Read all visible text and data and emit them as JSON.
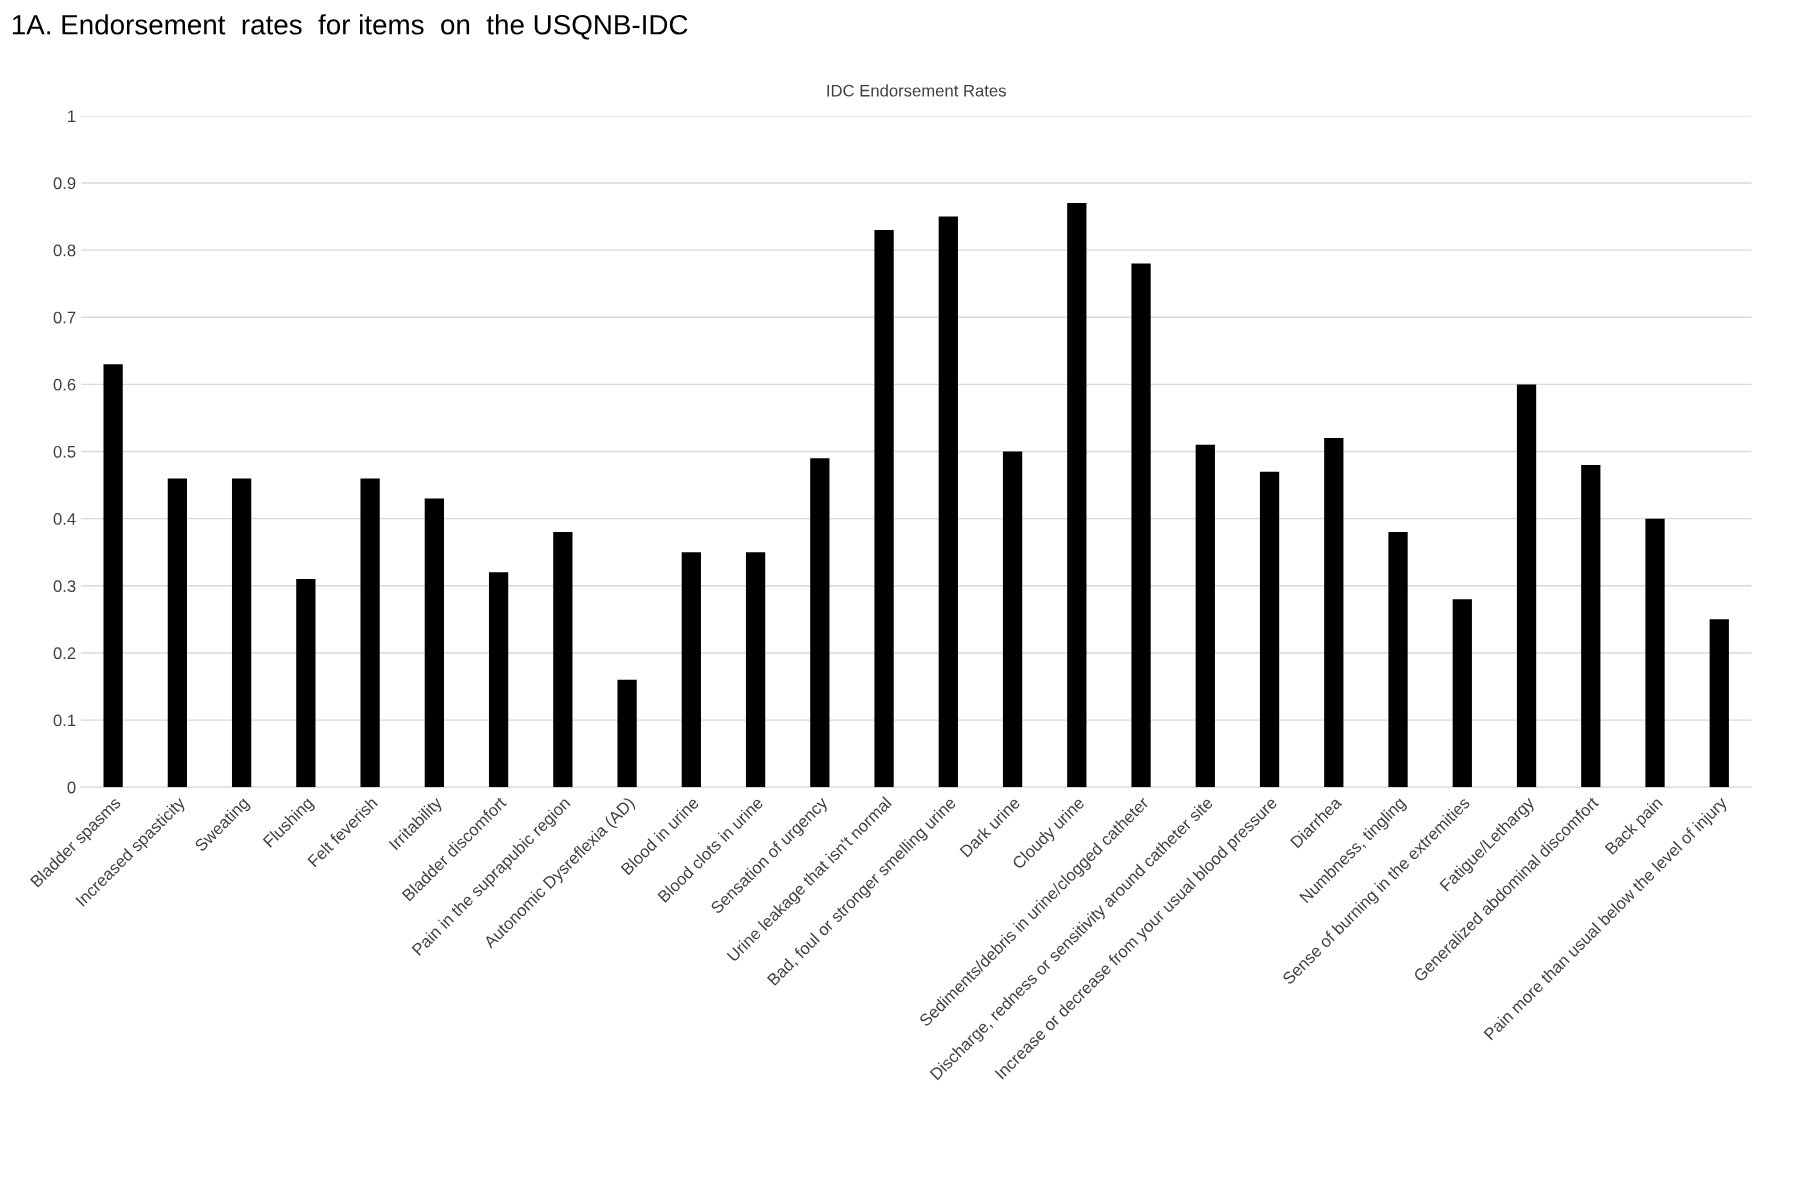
{
  "chart_data": {
    "type": "bar",
    "title": "IDC Endorsement Rates",
    "annotations": [
      "1A. Endorsement  rates  for items  on  the USQNB-IDC"
    ],
    "categories": [
      "Bladder spasms",
      "Increased spasticity",
      "Sweating",
      "Flushing",
      "Felt feverish",
      "Irritability",
      "Bladder discomfort",
      "Pain in the suprapubic region",
      "Autonomic Dysreflexia (AD)",
      "Blood in urine",
      "Blood clots in urine",
      "Sensation of urgency",
      "Urine leakage that isn't normal",
      "Bad, foul or stronger smelling urine",
      "Dark urine",
      "Cloudy urine",
      "Sediments/debris in urine/clogged catheter",
      "Discharge, redness or sensitivity around catheter site",
      "Increase or decrease from your usual blood pressure",
      "Diarrhea",
      "Numbness, tingling",
      "Sense of burning in the extremities",
      "Fatigue/Lethargy",
      "Generalized abdominal discomfort",
      "Back pain",
      "Pain more than usual below the level of injury"
    ],
    "values": [
      0.63,
      0.46,
      0.46,
      0.31,
      0.46,
      0.43,
      0.32,
      0.38,
      0.16,
      0.35,
      0.35,
      0.49,
      0.83,
      0.85,
      0.5,
      0.87,
      0.78,
      0.51,
      0.47,
      0.52,
      0.38,
      0.28,
      0.6,
      0.48,
      0.4,
      0.25
    ],
    "color": "#000000",
    "ylim": [
      0,
      1
    ],
    "yticks": [
      0,
      0.1,
      0.2,
      0.3,
      0.4,
      0.5,
      0.6,
      0.7,
      0.8,
      0.9,
      1
    ],
    "grid": "y"
  }
}
